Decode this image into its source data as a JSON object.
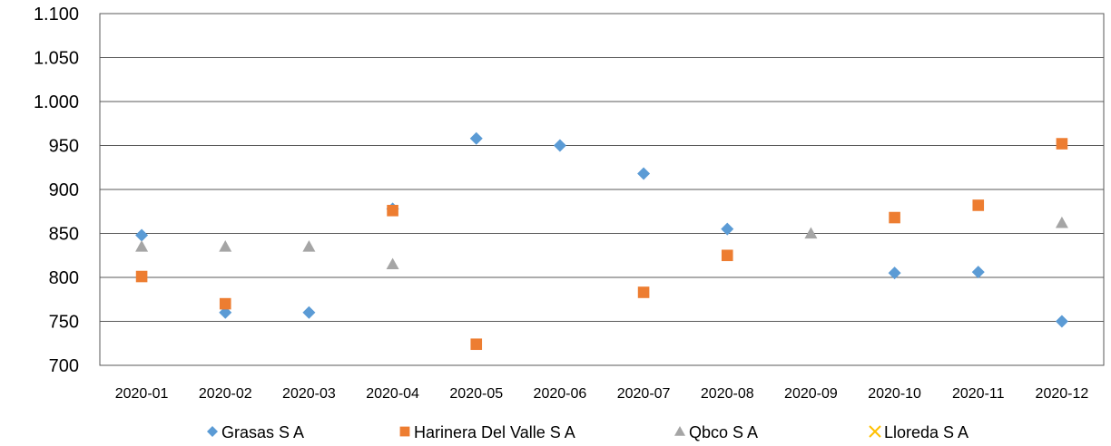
{
  "chart_data": {
    "type": "scatter",
    "categories": [
      "2020-01",
      "2020-02",
      "2020-03",
      "2020-04",
      "2020-05",
      "2020-06",
      "2020-07",
      "2020-08",
      "2020-09",
      "2020-10",
      "2020-11",
      "2020-12"
    ],
    "ylim": [
      700,
      1100
    ],
    "ytick_values": [
      700,
      750,
      800,
      850,
      900,
      950,
      1000,
      1050,
      1100
    ],
    "ytick_labels": [
      "700",
      "750",
      "800",
      "850",
      "900",
      "950",
      "1.000",
      "1.050",
      "1.100"
    ],
    "grid": true,
    "legend_position": "bottom",
    "series": [
      {
        "name": "Grasas S A",
        "marker": "diamond",
        "color": "#5B9BD5",
        "values": [
          848,
          760,
          760,
          878,
          958,
          950,
          918,
          855,
          null,
          805,
          806,
          750
        ]
      },
      {
        "name": "Harinera Del Valle S A",
        "marker": "square",
        "color": "#ED7D31",
        "values": [
          801,
          770,
          null,
          876,
          724,
          null,
          783,
          825,
          null,
          868,
          882,
          952
        ]
      },
      {
        "name": "Qbco S A",
        "marker": "triangle",
        "color": "#A5A5A5",
        "values": [
          835,
          835,
          835,
          815,
          null,
          null,
          null,
          null,
          850,
          null,
          null,
          862
        ]
      },
      {
        "name": "Lloreda S A",
        "marker": "x",
        "color": "#FFC000",
        "values": [
          null,
          null,
          null,
          null,
          null,
          null,
          null,
          null,
          null,
          null,
          null,
          null
        ]
      }
    ]
  }
}
